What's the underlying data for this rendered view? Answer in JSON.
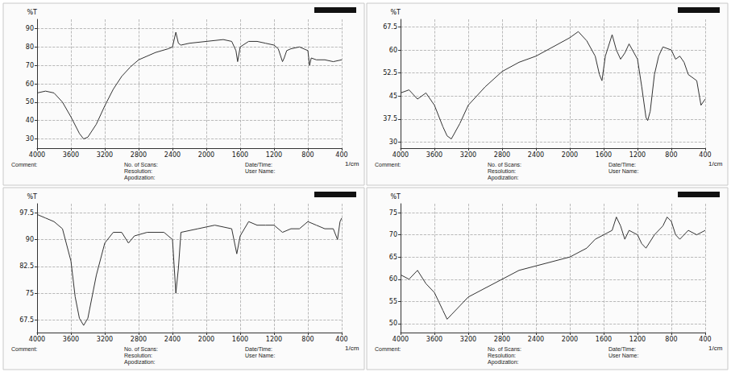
{
  "chart_data": [
    {
      "type": "line",
      "xlabel": "1/cm",
      "ylabel": "%T",
      "color": "#333333",
      "grid": true,
      "xlim": [
        4000,
        400
      ],
      "xticks": [
        4000,
        3600,
        3200,
        2800,
        2400,
        2000,
        1600,
        1200,
        800,
        400
      ],
      "ylim": [
        25,
        95
      ],
      "yticks": [
        30,
        40,
        50,
        60,
        70,
        80,
        90
      ],
      "footer": [
        [
          "Comment:"
        ],
        [
          "No. of Scans:",
          "Resolution:",
          "Apodization:"
        ],
        [
          "Date/Time:",
          "User Name:"
        ]
      ],
      "x": [
        4000,
        3900,
        3800,
        3700,
        3600,
        3500,
        3450,
        3400,
        3300,
        3200,
        3100,
        3000,
        2900,
        2800,
        2600,
        2450,
        2400,
        2360,
        2330,
        2300,
        2200,
        2000,
        1800,
        1700,
        1650,
        1630,
        1600,
        1500,
        1400,
        1300,
        1200,
        1150,
        1100,
        1080,
        1050,
        1000,
        900,
        800,
        780,
        760,
        700,
        600,
        500,
        400
      ],
      "values": [
        55,
        56,
        55,
        50,
        42,
        33,
        30,
        31,
        38,
        48,
        57,
        64,
        69,
        73,
        77,
        79,
        80,
        88,
        82,
        81,
        82,
        83,
        84,
        83,
        78,
        72,
        80,
        83,
        83,
        82,
        81,
        79,
        72,
        74,
        78,
        79,
        80,
        78,
        70,
        74,
        73,
        73,
        72,
        73
      ]
    },
    {
      "type": "line",
      "xlabel": "1/cm",
      "ylabel": "%T",
      "color": "#333333",
      "grid": true,
      "xlim": [
        4000,
        400
      ],
      "xticks": [
        4000,
        3600,
        3200,
        2800,
        2400,
        2000,
        1600,
        1200,
        800,
        400
      ],
      "ylim": [
        28,
        70
      ],
      "yticks": [
        30,
        37.5,
        45,
        52.5,
        60,
        67.5
      ],
      "footer": [
        [
          "Comment:"
        ],
        [
          "No. of Scans:",
          "Resolution:",
          "Apodization:"
        ],
        [
          "Date/Time:",
          "User Name:"
        ]
      ],
      "x": [
        4000,
        3900,
        3800,
        3700,
        3600,
        3500,
        3450,
        3400,
        3300,
        3200,
        3000,
        2800,
        2600,
        2400,
        2200,
        2000,
        1900,
        1800,
        1700,
        1650,
        1620,
        1580,
        1500,
        1450,
        1400,
        1350,
        1300,
        1200,
        1150,
        1100,
        1080,
        1050,
        1000,
        950,
        900,
        800,
        750,
        700,
        650,
        600,
        500,
        450,
        400
      ],
      "values": [
        46,
        47,
        44,
        46,
        42,
        35,
        32,
        31,
        36,
        42,
        48,
        53,
        56,
        58,
        61,
        64,
        66,
        63,
        58,
        52,
        50,
        58,
        65,
        60,
        57,
        59,
        62,
        57,
        48,
        38,
        37,
        40,
        52,
        58,
        61,
        60,
        57,
        58,
        56,
        52,
        50,
        42,
        44
      ]
    },
    {
      "type": "line",
      "xlabel": "1/cm",
      "ylabel": "%T",
      "color": "#333333",
      "grid": true,
      "xlim": [
        4000,
        400
      ],
      "xticks": [
        4000,
        3600,
        3200,
        2800,
        2400,
        2000,
        1600,
        1200,
        800,
        400
      ],
      "ylim": [
        64,
        100
      ],
      "yticks": [
        67.5,
        75,
        82.5,
        90,
        97.5
      ],
      "footer": [
        [
          "Comment:"
        ],
        [
          "No. of Scans:",
          "Resolution:",
          "Apodization:"
        ],
        [
          "Date/Time:",
          "User Name:"
        ]
      ],
      "x": [
        4000,
        3900,
        3800,
        3700,
        3600,
        3550,
        3500,
        3450,
        3400,
        3300,
        3200,
        3100,
        3000,
        2920,
        2850,
        2700,
        2500,
        2400,
        2360,
        2330,
        2300,
        2100,
        1900,
        1700,
        1640,
        1600,
        1500,
        1400,
        1300,
        1200,
        1100,
        1000,
        900,
        800,
        700,
        600,
        500,
        450,
        420,
        400
      ],
      "values": [
        97,
        96,
        95,
        93,
        84,
        74,
        68,
        66,
        68,
        80,
        89,
        92,
        92,
        89,
        91,
        92,
        92,
        90,
        75,
        82,
        92,
        93,
        94,
        93,
        86,
        91,
        95,
        94,
        94,
        94,
        92,
        93,
        93,
        95,
        94,
        93,
        93,
        90,
        95,
        96
      ]
    },
    {
      "type": "line",
      "xlabel": "1/cm",
      "ylabel": "%T",
      "color": "#333333",
      "grid": true,
      "xlim": [
        4000,
        400
      ],
      "xticks": [
        4000,
        3600,
        3200,
        2800,
        2400,
        2000,
        1600,
        1200,
        800,
        400
      ],
      "ylim": [
        48,
        77
      ],
      "yticks": [
        50,
        55,
        60,
        65,
        70,
        75
      ],
      "footer": [
        [
          "Comment:"
        ],
        [
          "No. of Scans:",
          "Resolution:",
          "Apodization:"
        ],
        [
          "Date/Time:",
          "User Name:"
        ]
      ],
      "x": [
        4000,
        3900,
        3800,
        3700,
        3600,
        3500,
        3450,
        3400,
        3300,
        3200,
        3000,
        2800,
        2600,
        2400,
        2200,
        2000,
        1800,
        1700,
        1600,
        1500,
        1450,
        1400,
        1350,
        1300,
        1200,
        1150,
        1100,
        1000,
        900,
        850,
        800,
        750,
        700,
        600,
        500,
        400
      ],
      "values": [
        61,
        60,
        62,
        59,
        57,
        53,
        51,
        52,
        54,
        56,
        58,
        60,
        62,
        63,
        64,
        65,
        67,
        69,
        70,
        71,
        74,
        72,
        69,
        71,
        70,
        68,
        67,
        70,
        72,
        74,
        73,
        70,
        69,
        71,
        70,
        71
      ]
    }
  ]
}
